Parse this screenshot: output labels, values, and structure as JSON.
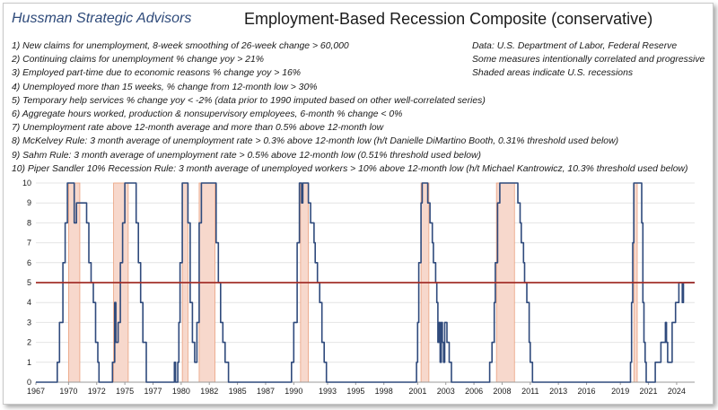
{
  "header": {
    "brand": "Hussman Strategic Advisors",
    "title": "Employment-Based Recession Composite (conservative)"
  },
  "rules": [
    "1) New claims for unemployment, 8-week smoothing of 26-week change > 60,000",
    "2) Continuing claims for unemployment % change yoy > 21%",
    "3) Employed part-time due to economic reasons % change yoy > 16%",
    "4) Unemployed more than 15 weeks, % change from 12-month low > 30%",
    "5) Temporary help services % change yoy < -2% (data prior to 1990 imputed based on other well-correlated series)",
    "6) Aggregate hours worked, production & nonsupervisory employees, 6-month % change < 0%",
    "7) Unemployment rate above 12-month average and more than 0.5% above 12-month low",
    "8) McKelvey Rule: 3 month average of unemployment rate > 0.3% above 12-month low (h/t Danielle DiMartino Booth, 0.31% threshold used below)",
    "9) Sahm Rule: 3 month average of unemployment rate > 0.5% above 12-month low (0.51% threshold used below)",
    "10) Piper Sandler 10% Recession Rule: 3 month average of unemployed workers > 10% above 12-month low (h/t Michael Kantrowicz, 10.3% threshold used below)"
  ],
  "source_notes": [
    "Data: U.S. Department of Labor, Federal Reserve",
    "Some measures intentionally correlated and progressive",
    "Shaded areas indicate U.S. recessions"
  ],
  "colors": {
    "series": "#2f4a7c",
    "threshold": "#a3302a",
    "recession_fill": "#f7d8cc",
    "recession_edge": "#eaa07e",
    "grid": "#e4e4e4",
    "brand": "#2e4a7a"
  },
  "chart_data": {
    "type": "area",
    "xlim": [
      1967,
      2025.5
    ],
    "ylim": [
      0,
      10
    ],
    "x_ticks": [
      "1967",
      "1970",
      "1972",
      "1975",
      "1977",
      "1980",
      "1982",
      "1985",
      "1987",
      "1990",
      "1993",
      "1995",
      "1998",
      "2001",
      "2003",
      "2006",
      "2008",
      "2011",
      "2013",
      "2016",
      "2019",
      "2021",
      "2024"
    ],
    "x_tick_values": [
      1967,
      1969.9,
      1972.4,
      1974.9,
      1977.4,
      1979.9,
      1982.4,
      1984.9,
      1987.4,
      1989.9,
      1992.9,
      1995.4,
      1997.9,
      2000.9,
      2003.4,
      2005.9,
      2008.4,
      2010.9,
      2013.4,
      2015.9,
      2018.9,
      2021.4,
      2023.9
    ],
    "y_ticks": [
      0,
      1,
      2,
      3,
      4,
      5,
      6,
      7,
      8,
      9,
      10
    ],
    "grid": true,
    "threshold": 5,
    "recessions": [
      [
        1969.9,
        1970.9
      ],
      [
        1973.9,
        1975.2
      ],
      [
        1980.0,
        1980.5
      ],
      [
        1981.5,
        1982.9
      ],
      [
        1990.5,
        1991.2
      ],
      [
        2001.2,
        2001.9
      ],
      [
        2007.9,
        2009.5
      ],
      [
        2020.1,
        2020.4
      ]
    ],
    "series": [
      {
        "values": [
          [
            1967.0,
            0
          ],
          [
            1968.6,
            0
          ],
          [
            1968.9,
            1
          ],
          [
            1969.1,
            3
          ],
          [
            1969.4,
            6
          ],
          [
            1969.6,
            8
          ],
          [
            1969.8,
            10
          ],
          [
            1970.3,
            10
          ],
          [
            1970.4,
            8
          ],
          [
            1970.6,
            9
          ],
          [
            1971.3,
            9
          ],
          [
            1971.5,
            8
          ],
          [
            1971.7,
            6
          ],
          [
            1971.9,
            5
          ],
          [
            1972.1,
            4
          ],
          [
            1972.3,
            2
          ],
          [
            1972.5,
            1
          ],
          [
            1972.6,
            0
          ],
          [
            1973.6,
            0
          ],
          [
            1973.8,
            1
          ],
          [
            1974.0,
            4
          ],
          [
            1974.1,
            2
          ],
          [
            1974.3,
            3
          ],
          [
            1974.5,
            6
          ],
          [
            1974.7,
            8
          ],
          [
            1974.9,
            10
          ],
          [
            1975.6,
            10
          ],
          [
            1975.9,
            8
          ],
          [
            1976.1,
            6
          ],
          [
            1976.3,
            4
          ],
          [
            1976.5,
            2
          ],
          [
            1976.8,
            0
          ],
          [
            1979.2,
            0
          ],
          [
            1979.3,
            1
          ],
          [
            1979.4,
            0
          ],
          [
            1979.6,
            1
          ],
          [
            1979.7,
            3
          ],
          [
            1979.8,
            6
          ],
          [
            1980.0,
            10
          ],
          [
            1980.3,
            10
          ],
          [
            1980.5,
            8
          ],
          [
            1980.7,
            4
          ],
          [
            1980.9,
            2
          ],
          [
            1981.1,
            1
          ],
          [
            1981.3,
            3
          ],
          [
            1981.5,
            8
          ],
          [
            1981.7,
            10
          ],
          [
            1982.8,
            10
          ],
          [
            1983.0,
            7
          ],
          [
            1983.2,
            5
          ],
          [
            1983.4,
            3
          ],
          [
            1983.6,
            2
          ],
          [
            1983.8,
            1
          ],
          [
            1984.1,
            0
          ],
          [
            1989.4,
            0
          ],
          [
            1989.7,
            1
          ],
          [
            1989.9,
            3
          ],
          [
            1990.2,
            7
          ],
          [
            1990.4,
            10
          ],
          [
            1990.6,
            9
          ],
          [
            1990.7,
            10
          ],
          [
            1991.0,
            10
          ],
          [
            1991.2,
            9
          ],
          [
            1991.4,
            8
          ],
          [
            1991.7,
            7
          ],
          [
            1991.8,
            6
          ],
          [
            1992.0,
            5
          ],
          [
            1992.2,
            4
          ],
          [
            1992.4,
            2
          ],
          [
            1992.6,
            1
          ],
          [
            1992.8,
            0
          ],
          [
            2000.6,
            0
          ],
          [
            2000.8,
            1
          ],
          [
            2000.9,
            3
          ],
          [
            2001.0,
            6
          ],
          [
            2001.2,
            9
          ],
          [
            2001.3,
            10
          ],
          [
            2001.6,
            10
          ],
          [
            2001.8,
            9
          ],
          [
            2002.0,
            8
          ],
          [
            2002.2,
            7
          ],
          [
            2002.3,
            6
          ],
          [
            2002.5,
            5
          ],
          [
            2002.6,
            4
          ],
          [
            2002.7,
            2
          ],
          [
            2002.8,
            3
          ],
          [
            2002.9,
            1
          ],
          [
            2003.0,
            3
          ],
          [
            2003.1,
            2
          ],
          [
            2003.2,
            1
          ],
          [
            2003.3,
            3
          ],
          [
            2003.5,
            2
          ],
          [
            2003.7,
            1
          ],
          [
            2003.9,
            0
          ],
          [
            2007.2,
            0
          ],
          [
            2007.3,
            1
          ],
          [
            2007.5,
            2
          ],
          [
            2007.7,
            4
          ],
          [
            2007.8,
            6
          ],
          [
            2008.0,
            9
          ],
          [
            2008.2,
            10
          ],
          [
            2009.6,
            10
          ],
          [
            2009.8,
            9
          ],
          [
            2010.0,
            8
          ],
          [
            2010.1,
            7
          ],
          [
            2010.3,
            6
          ],
          [
            2010.4,
            5
          ],
          [
            2010.6,
            4
          ],
          [
            2010.8,
            2
          ],
          [
            2010.9,
            1
          ],
          [
            2011.1,
            0
          ],
          [
            2019.7,
            0
          ],
          [
            2019.8,
            1
          ],
          [
            2019.9,
            4
          ],
          [
            2020.0,
            7
          ],
          [
            2020.1,
            10
          ],
          [
            2020.7,
            10
          ],
          [
            2020.8,
            8
          ],
          [
            2020.9,
            4
          ],
          [
            2021.0,
            2
          ],
          [
            2021.1,
            1
          ],
          [
            2021.2,
            0
          ],
          [
            2021.9,
            0
          ],
          [
            2022.0,
            1
          ],
          [
            2022.4,
            1
          ],
          [
            2022.5,
            2
          ],
          [
            2022.8,
            2
          ],
          [
            2022.9,
            3
          ],
          [
            2023.0,
            2
          ],
          [
            2023.1,
            1
          ],
          [
            2023.4,
            1
          ],
          [
            2023.5,
            3
          ],
          [
            2023.7,
            3
          ],
          [
            2023.8,
            4
          ],
          [
            2024.0,
            4
          ],
          [
            2024.1,
            5
          ],
          [
            2024.3,
            5
          ],
          [
            2024.4,
            4
          ],
          [
            2024.5,
            5
          ]
        ]
      }
    ]
  }
}
